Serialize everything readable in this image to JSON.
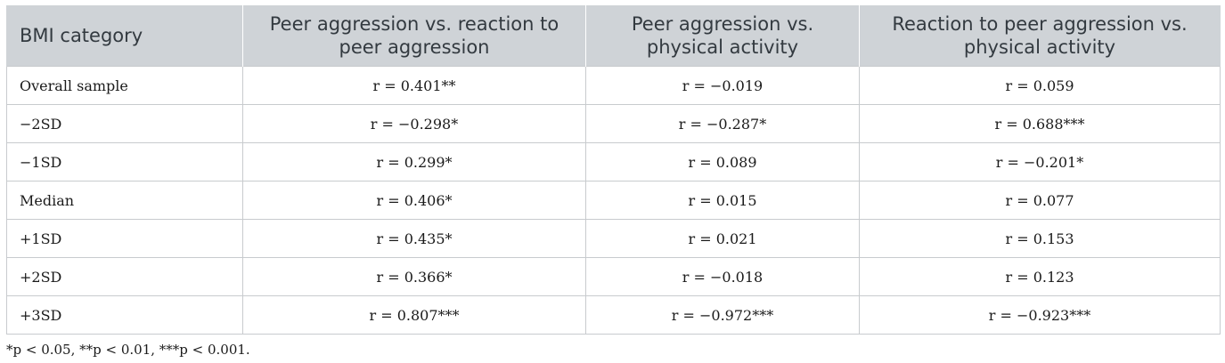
{
  "table": {
    "headers": [
      "BMI category",
      "Peer aggression vs. reaction to peer aggression",
      "Peer aggression vs. physical activity",
      "Reaction to peer aggression vs. physical activity"
    ],
    "rows": [
      [
        "Overall sample",
        "r = 0.401**",
        "r = −0.019",
        "r = 0.059"
      ],
      [
        "−2SD",
        "r = −0.298*",
        "r = −0.287*",
        "r = 0.688***"
      ],
      [
        "−1SD",
        "r = 0.299*",
        "r = 0.089",
        "r = −0.201*"
      ],
      [
        "Median",
        "r = 0.406*",
        "r = 0.015",
        "r = 0.077"
      ],
      [
        "+1SD",
        "r = 0.435*",
        "r = 0.021",
        "r = 0.153"
      ],
      [
        "+2SD",
        "r = 0.366*",
        "r = −0.018",
        "r = 0.123"
      ],
      [
        "+3SD",
        "r = 0.807***",
        "r = −0.972***",
        "r = −0.923***"
      ]
    ]
  },
  "footnote": "*p < 0.05, **p < 0.01, ***p < 0.001.",
  "colors": {
    "header_bg": "#cfd3d7",
    "header_text": "#333a40",
    "border": "#c8cbce"
  }
}
